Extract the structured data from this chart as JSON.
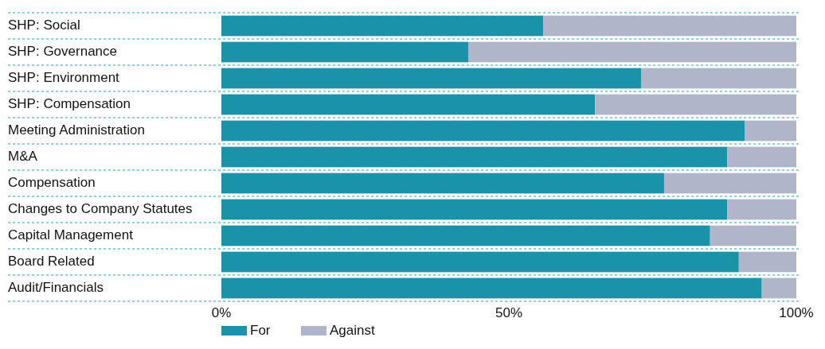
{
  "chart_data": {
    "type": "bar",
    "orientation": "horizontal",
    "stacked": true,
    "categories": [
      "SHP: Social",
      "SHP: Governance",
      "SHP: Environment",
      "SHP: Compensation",
      "Meeting Administration",
      "M&A",
      "Compensation",
      "Changes to Company Statutes",
      "Capital Management",
      "Board Related",
      "Audit/Financials"
    ],
    "series": [
      {
        "name": "For",
        "color": "#1a93a8",
        "values": [
          56,
          43,
          73,
          65,
          91,
          88,
          77,
          88,
          85,
          90,
          94
        ]
      },
      {
        "name": "Against",
        "color": "#b1b5c9",
        "values": [
          44,
          57,
          27,
          35,
          9,
          12,
          23,
          12,
          15,
          10,
          6
        ]
      }
    ],
    "xlim": [
      0,
      100
    ],
    "xticks": [
      {
        "value": 0,
        "label": "0%"
      },
      {
        "value": 50,
        "label": "50%"
      },
      {
        "value": 100,
        "label": "100%"
      }
    ],
    "grid": false,
    "legend": "bottom left"
  }
}
